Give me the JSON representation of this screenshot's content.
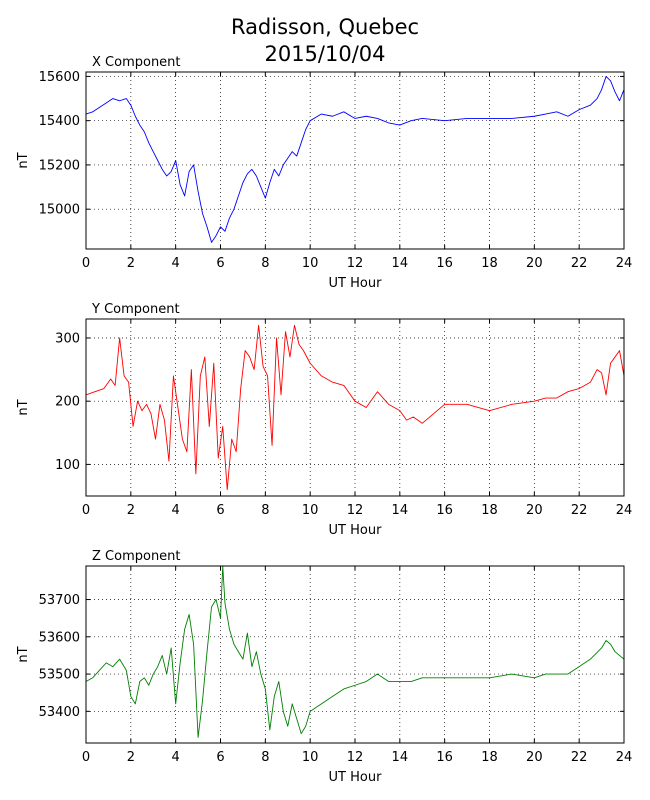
{
  "title_line1": "Radisson, Quebec",
  "title_line2": "2015/10/04",
  "chart_data": [
    {
      "type": "line",
      "title": "X Component",
      "xlabel": "UT Hour",
      "ylabel": "nT",
      "xlim": [
        0,
        24
      ],
      "ylim": [
        14820,
        15620
      ],
      "xticks": [
        0,
        2,
        4,
        6,
        8,
        10,
        12,
        14,
        16,
        18,
        20,
        22,
        24
      ],
      "yticks": [
        15000,
        15200,
        15400,
        15600
      ],
      "grid": true,
      "series": [
        {
          "color": "#0000ff",
          "x": [
            0,
            0.3,
            0.6,
            0.9,
            1.2,
            1.5,
            1.8,
            2.0,
            2.2,
            2.4,
            2.6,
            2.8,
            3.0,
            3.2,
            3.4,
            3.6,
            3.8,
            4.0,
            4.2,
            4.4,
            4.6,
            4.8,
            5.0,
            5.2,
            5.4,
            5.6,
            5.8,
            6.0,
            6.2,
            6.4,
            6.6,
            6.8,
            7.0,
            7.2,
            7.4,
            7.6,
            7.8,
            8.0,
            8.2,
            8.4,
            8.6,
            8.8,
            9.0,
            9.2,
            9.4,
            9.6,
            9.8,
            10.0,
            10.5,
            11.0,
            11.5,
            12.0,
            12.5,
            13.0,
            13.5,
            14.0,
            14.5,
            15.0,
            16.0,
            17.0,
            18.0,
            19.0,
            20.0,
            20.5,
            21.0,
            21.5,
            22.0,
            22.5,
            22.8,
            23.0,
            23.2,
            23.4,
            23.6,
            23.8,
            24.0
          ],
          "y": [
            15430,
            15440,
            15460,
            15480,
            15500,
            15490,
            15500,
            15470,
            15420,
            15380,
            15350,
            15300,
            15260,
            15220,
            15180,
            15150,
            15170,
            15220,
            15110,
            15060,
            15170,
            15200,
            15080,
            14980,
            14920,
            14850,
            14880,
            14920,
            14900,
            14960,
            15000,
            15060,
            15120,
            15160,
            15180,
            15150,
            15100,
            15050,
            15120,
            15180,
            15150,
            15200,
            15230,
            15260,
            15240,
            15300,
            15360,
            15400,
            15430,
            15420,
            15440,
            15410,
            15420,
            15410,
            15390,
            15380,
            15400,
            15410,
            15400,
            15410,
            15410,
            15410,
            15420,
            15430,
            15440,
            15420,
            15450,
            15470,
            15500,
            15540,
            15600,
            15580,
            15530,
            15490,
            15540
          ]
        }
      ]
    },
    {
      "type": "line",
      "title": "Y Component",
      "xlabel": "UT Hour",
      "ylabel": "nT",
      "xlim": [
        0,
        24
      ],
      "ylim": [
        50,
        330
      ],
      "xticks": [
        0,
        2,
        4,
        6,
        8,
        10,
        12,
        14,
        16,
        18,
        20,
        22,
        24
      ],
      "yticks": [
        100,
        200,
        300
      ],
      "grid": true,
      "series": [
        {
          "color": "#ff0000",
          "x": [
            0,
            0.4,
            0.8,
            1.1,
            1.3,
            1.5,
            1.7,
            1.9,
            2.1,
            2.3,
            2.5,
            2.7,
            2.9,
            3.1,
            3.3,
            3.5,
            3.7,
            3.9,
            4.1,
            4.3,
            4.5,
            4.7,
            4.9,
            5.1,
            5.3,
            5.5,
            5.7,
            5.9,
            6.1,
            6.3,
            6.5,
            6.7,
            6.9,
            7.1,
            7.3,
            7.5,
            7.7,
            7.9,
            8.1,
            8.3,
            8.5,
            8.7,
            8.9,
            9.1,
            9.3,
            9.5,
            9.7,
            10.0,
            10.5,
            11.0,
            11.5,
            12.0,
            12.5,
            13.0,
            13.5,
            14.0,
            14.3,
            14.6,
            15.0,
            15.5,
            16.0,
            17.0,
            18.0,
            19.0,
            20.0,
            20.5,
            21.0,
            21.5,
            22.0,
            22.5,
            22.8,
            23.0,
            23.2,
            23.4,
            23.6,
            23.8,
            24.0
          ],
          "y": [
            210,
            215,
            220,
            235,
            225,
            300,
            240,
            230,
            160,
            200,
            185,
            195,
            180,
            140,
            195,
            170,
            105,
            240,
            190,
            140,
            120,
            250,
            85,
            240,
            270,
            160,
            260,
            110,
            160,
            60,
            140,
            120,
            220,
            280,
            270,
            250,
            320,
            255,
            240,
            130,
            300,
            210,
            310,
            270,
            320,
            290,
            280,
            260,
            240,
            230,
            225,
            200,
            190,
            215,
            195,
            185,
            170,
            175,
            165,
            180,
            195,
            195,
            185,
            195,
            200,
            205,
            205,
            215,
            220,
            230,
            250,
            245,
            210,
            260,
            270,
            280,
            240
          ]
        }
      ]
    },
    {
      "type": "line",
      "title": "Z Component",
      "xlabel": "UT Hour",
      "ylabel": "nT",
      "xlim": [
        0,
        24
      ],
      "ylim": [
        53315,
        53790
      ],
      "xticks": [
        0,
        2,
        4,
        6,
        8,
        10,
        12,
        14,
        16,
        18,
        20,
        22,
        24
      ],
      "yticks": [
        53400,
        53500,
        53600,
        53700
      ],
      "grid": true,
      "series": [
        {
          "color": "#008000",
          "x": [
            0,
            0.3,
            0.6,
            0.9,
            1.2,
            1.5,
            1.8,
            2.0,
            2.2,
            2.4,
            2.6,
            2.8,
            3.0,
            3.2,
            3.4,
            3.6,
            3.8,
            4.0,
            4.2,
            4.4,
            4.6,
            4.8,
            5.0,
            5.2,
            5.4,
            5.6,
            5.8,
            6.0,
            6.1,
            6.2,
            6.4,
            6.6,
            6.8,
            7.0,
            7.2,
            7.4,
            7.6,
            7.8,
            8.0,
            8.2,
            8.4,
            8.6,
            8.8,
            9.0,
            9.2,
            9.4,
            9.6,
            9.8,
            10.0,
            10.5,
            11.0,
            11.5,
            12.0,
            12.5,
            13.0,
            13.5,
            14.0,
            14.5,
            15.0,
            16.0,
            17.0,
            18.0,
            19.0,
            20.0,
            20.5,
            21.0,
            21.5,
            22.0,
            22.5,
            23.0,
            23.2,
            23.4,
            23.6,
            23.8,
            24.0
          ],
          "y": [
            53480,
            53490,
            53510,
            53530,
            53520,
            53540,
            53510,
            53440,
            53420,
            53480,
            53490,
            53470,
            53500,
            53520,
            53550,
            53500,
            53570,
            53420,
            53530,
            53620,
            53660,
            53580,
            53330,
            53430,
            53560,
            53680,
            53700,
            53650,
            53790,
            53690,
            53620,
            53580,
            53560,
            53540,
            53610,
            53520,
            53560,
            53500,
            53460,
            53350,
            53440,
            53480,
            53400,
            53360,
            53420,
            53380,
            53340,
            53360,
            53400,
            53420,
            53440,
            53460,
            53470,
            53480,
            53500,
            53480,
            53480,
            53480,
            53490,
            53490,
            53490,
            53490,
            53500,
            53490,
            53500,
            53500,
            53500,
            53520,
            53540,
            53570,
            53590,
            53580,
            53560,
            53550,
            53540
          ]
        }
      ]
    }
  ]
}
